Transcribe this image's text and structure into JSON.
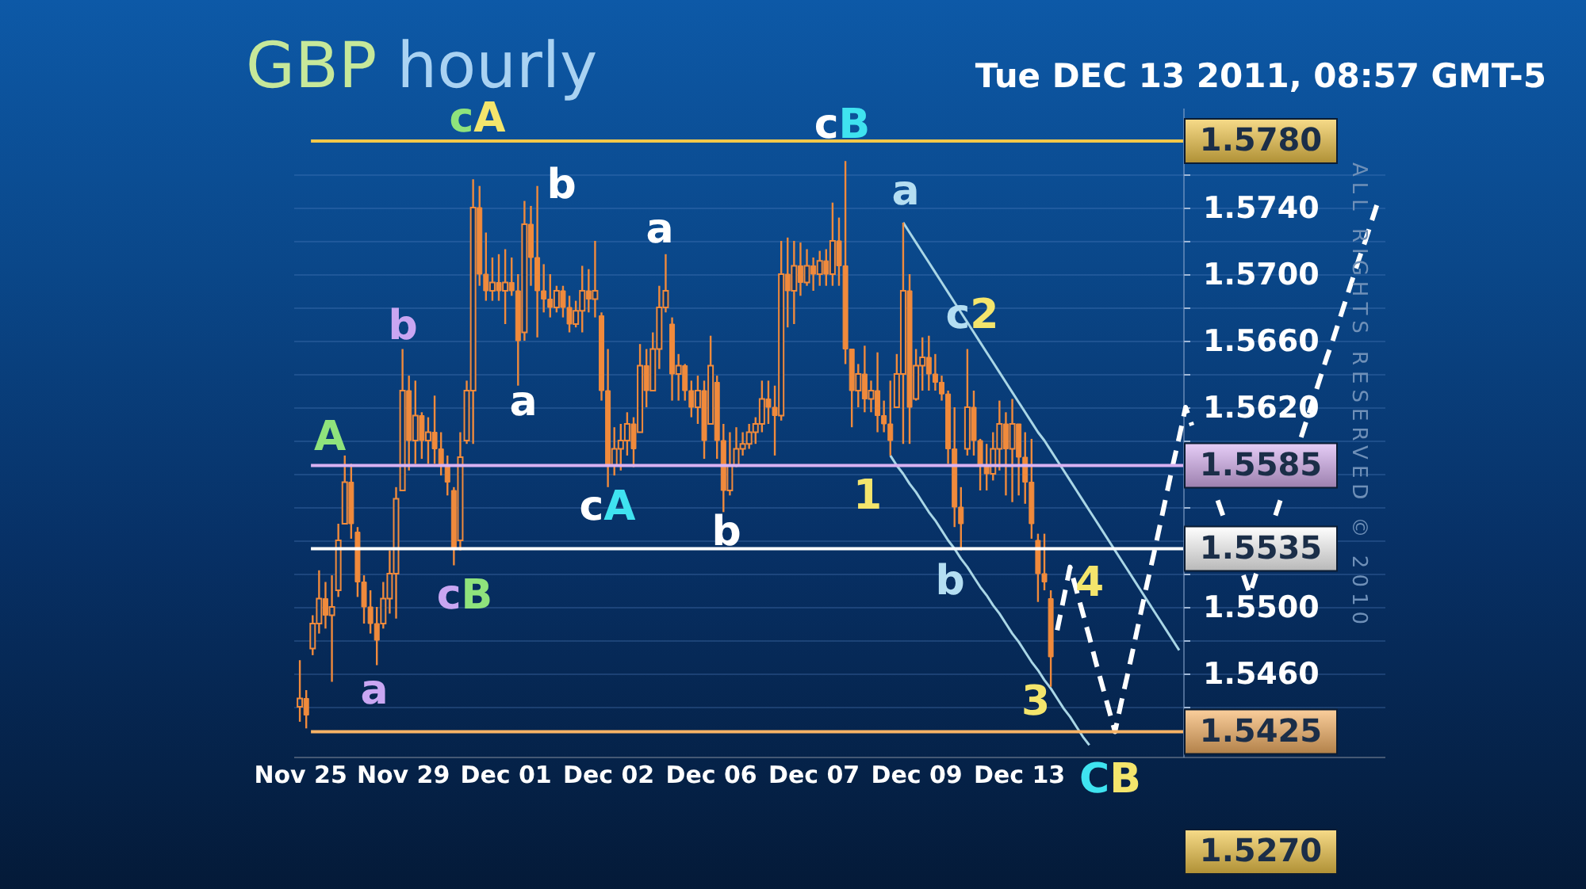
{
  "chart_data": {
    "type": "candlestick",
    "title": "GBP hourly",
    "subtitle": "Tue DEC 13 2011, 08:57 GMT-5",
    "color": "#f08a3c",
    "categories": [
      "Nov 25",
      null,
      null,
      null,
      null,
      null,
      null,
      null,
      null,
      null,
      null,
      null,
      null,
      null,
      null,
      null,
      "Nov 29",
      null,
      null,
      null,
      null,
      null,
      null,
      null,
      null,
      null,
      null,
      null,
      null,
      null,
      null,
      null,
      "Dec 01",
      null,
      null,
      null,
      null,
      null,
      null,
      null,
      null,
      null,
      null,
      null,
      null,
      null,
      null,
      null,
      "Dec 02",
      null,
      null,
      null,
      null,
      null,
      null,
      null,
      null,
      null,
      null,
      null,
      null,
      null,
      null,
      null,
      "Dec 06",
      null,
      null,
      null,
      null,
      null,
      null,
      null,
      null,
      null,
      null,
      null,
      null,
      null,
      null,
      null,
      "Dec 07",
      null,
      null,
      null,
      null,
      null,
      null,
      null,
      null,
      null,
      null,
      null,
      null,
      null,
      null,
      null,
      "Dec 09",
      null,
      null,
      null,
      null,
      null,
      null,
      null,
      null,
      null,
      null,
      null,
      null,
      null,
      null,
      null,
      "Dec 13",
      null,
      null,
      null,
      null,
      null,
      null,
      null,
      null,
      null,
      null,
      null,
      null,
      null,
      null,
      null,
      null,
      null,
      null,
      null,
      null,
      null,
      null,
      null,
      null,
      null,
      null,
      null,
      null,
      null,
      null,
      null,
      null,
      null,
      null,
      null,
      null,
      null,
      null,
      null,
      null,
      null,
      null,
      null,
      null,
      null,
      null,
      null,
      null,
      null,
      null,
      null,
      null,
      null,
      null,
      null,
      null
    ],
    "ohlc": [
      [
        1.544,
        1.5468,
        1.5431,
        1.5445
      ],
      [
        1.5445,
        1.545,
        1.5427,
        1.5435
      ],
      [
        1.5475,
        1.5495,
        1.5471,
        1.549
      ],
      [
        1.549,
        1.5522,
        1.5484,
        1.5505
      ],
      [
        1.5505,
        1.5515,
        1.5487,
        1.5495
      ],
      [
        1.5495,
        1.5519,
        1.5455,
        1.55
      ],
      [
        1.551,
        1.555,
        1.5506,
        1.554
      ],
      [
        1.555,
        1.5591,
        1.555,
        1.5575
      ],
      [
        1.5575,
        1.5586,
        1.5541,
        1.555
      ],
      [
        1.5545,
        1.5548,
        1.5506,
        1.5515
      ],
      [
        1.5515,
        1.5519,
        1.549,
        1.55
      ],
      [
        1.55,
        1.551,
        1.5484,
        1.549
      ],
      [
        1.549,
        1.55,
        1.5465,
        1.548
      ],
      [
        1.549,
        1.5515,
        1.5487,
        1.5505
      ],
      [
        1.5505,
        1.5534,
        1.5496,
        1.552
      ],
      [
        1.552,
        1.5572,
        1.5493,
        1.5565
      ],
      [
        1.557,
        1.5655,
        1.557,
        1.563
      ],
      [
        1.563,
        1.5639,
        1.5582,
        1.56
      ],
      [
        1.56,
        1.5636,
        1.5586,
        1.5615
      ],
      [
        1.5615,
        1.5617,
        1.5589,
        1.56
      ],
      [
        1.56,
        1.5614,
        1.5586,
        1.5605
      ],
      [
        1.5605,
        1.5627,
        1.5586,
        1.5595
      ],
      [
        1.5595,
        1.5605,
        1.5579,
        1.5585
      ],
      [
        1.5585,
        1.5591,
        1.5567,
        1.5575
      ],
      [
        1.557,
        1.5572,
        1.5525,
        1.5535
      ],
      [
        1.554,
        1.5605,
        1.5534,
        1.559
      ],
      [
        1.56,
        1.5636,
        1.5598,
        1.563
      ],
      [
        1.563,
        1.5757,
        1.5598,
        1.574
      ],
      [
        1.574,
        1.5753,
        1.5693,
        1.57
      ],
      [
        1.57,
        1.5725,
        1.5684,
        1.569
      ],
      [
        1.569,
        1.571,
        1.5684,
        1.5695
      ],
      [
        1.5695,
        1.5712,
        1.5684,
        1.569
      ],
      [
        1.569,
        1.5715,
        1.567,
        1.5695
      ],
      [
        1.5695,
        1.571,
        1.5687,
        1.569
      ],
      [
        1.569,
        1.57,
        1.5633,
        1.566
      ],
      [
        1.5665,
        1.5744,
        1.566,
        1.573
      ],
      [
        1.573,
        1.5741,
        1.5693,
        1.571
      ],
      [
        1.571,
        1.5753,
        1.5662,
        1.569
      ],
      [
        1.569,
        1.5706,
        1.5677,
        1.5685
      ],
      [
        1.5685,
        1.57,
        1.5674,
        1.568
      ],
      [
        1.568,
        1.5693,
        1.5677,
        1.569
      ],
      [
        1.569,
        1.5693,
        1.5674,
        1.568
      ],
      [
        1.568,
        1.5687,
        1.5665,
        1.567
      ],
      [
        1.567,
        1.5684,
        1.5668,
        1.5678
      ],
      [
        1.5678,
        1.5705,
        1.5665,
        1.569
      ],
      [
        1.569,
        1.5703,
        1.5677,
        1.5685
      ],
      [
        1.5685,
        1.572,
        1.5674,
        1.569
      ],
      [
        1.5675,
        1.5677,
        1.5624,
        1.563
      ],
      [
        1.563,
        1.5655,
        1.5572,
        1.5585
      ],
      [
        1.5585,
        1.5608,
        1.5579,
        1.5595
      ],
      [
        1.5595,
        1.561,
        1.5582,
        1.56
      ],
      [
        1.56,
        1.5617,
        1.5591,
        1.561
      ],
      [
        1.561,
        1.5614,
        1.5584,
        1.5595
      ],
      [
        1.5605,
        1.5658,
        1.5605,
        1.5645
      ],
      [
        1.5645,
        1.5655,
        1.562,
        1.563
      ],
      [
        1.563,
        1.5665,
        1.563,
        1.5655
      ],
      [
        1.5655,
        1.5693,
        1.5643,
        1.568
      ],
      [
        1.568,
        1.5712,
        1.5677,
        1.569
      ],
      [
        1.567,
        1.5674,
        1.5624,
        1.564
      ],
      [
        1.564,
        1.5652,
        1.5624,
        1.5645
      ],
      [
        1.5645,
        1.5646,
        1.5624,
        1.563
      ],
      [
        1.563,
        1.5636,
        1.5614,
        1.562
      ],
      [
        1.562,
        1.5639,
        1.561,
        1.563
      ],
      [
        1.563,
        1.5636,
        1.5589,
        1.56
      ],
      [
        1.561,
        1.5663,
        1.561,
        1.5645
      ],
      [
        1.5635,
        1.5639,
        1.5589,
        1.56
      ],
      [
        1.56,
        1.561,
        1.5557,
        1.557
      ],
      [
        1.557,
        1.5605,
        1.5567,
        1.5585
      ],
      [
        1.5585,
        1.5608,
        1.5584,
        1.5595
      ],
      [
        1.5595,
        1.5605,
        1.5591,
        1.5598
      ],
      [
        1.5598,
        1.561,
        1.5595,
        1.5605
      ],
      [
        1.5605,
        1.5614,
        1.5598,
        1.561
      ],
      [
        1.561,
        1.5636,
        1.5605,
        1.5625
      ],
      [
        1.5625,
        1.5636,
        1.561,
        1.562
      ],
      [
        1.562,
        1.5633,
        1.5591,
        1.5615
      ],
      [
        1.5615,
        1.572,
        1.5612,
        1.57
      ],
      [
        1.57,
        1.5722,
        1.5668,
        1.569
      ],
      [
        1.569,
        1.572,
        1.567,
        1.5705
      ],
      [
        1.5705,
        1.5719,
        1.5687,
        1.5695
      ],
      [
        1.5695,
        1.5715,
        1.5693,
        1.5705
      ],
      [
        1.5705,
        1.571,
        1.569,
        1.57
      ],
      [
        1.57,
        1.5714,
        1.5693,
        1.5708
      ],
      [
        1.5708,
        1.5715,
        1.5693,
        1.57
      ],
      [
        1.57,
        1.5743,
        1.5693,
        1.572
      ],
      [
        1.572,
        1.5734,
        1.5693,
        1.5705
      ],
      [
        1.5705,
        1.5768,
        1.5646,
        1.5655
      ],
      [
        1.5655,
        1.5655,
        1.5608,
        1.563
      ],
      [
        1.563,
        1.5646,
        1.562,
        1.564
      ],
      [
        1.564,
        1.5657,
        1.5617,
        1.5625
      ],
      [
        1.5625,
        1.5636,
        1.5617,
        1.563
      ],
      [
        1.563,
        1.5653,
        1.5605,
        1.5615
      ],
      [
        1.5615,
        1.5624,
        1.5605,
        1.561
      ],
      [
        1.561,
        1.5636,
        1.5591,
        1.56
      ],
      [
        1.562,
        1.5652,
        1.562,
        1.564
      ],
      [
        1.564,
        1.5731,
        1.5598,
        1.569
      ],
      [
        1.569,
        1.57,
        1.5598,
        1.562
      ],
      [
        1.5625,
        1.5655,
        1.5624,
        1.5645
      ],
      [
        1.5645,
        1.5662,
        1.563,
        1.565
      ],
      [
        1.565,
        1.5663,
        1.563,
        1.564
      ],
      [
        1.564,
        1.5652,
        1.563,
        1.5635
      ],
      [
        1.5635,
        1.5639,
        1.5624,
        1.5628
      ],
      [
        1.5628,
        1.563,
        1.5586,
        1.5595
      ],
      [
        1.5595,
        1.562,
        1.5548,
        1.556
      ],
      [
        1.556,
        1.5572,
        1.5534,
        1.555
      ],
      [
        1.5595,
        1.5655,
        1.5591,
        1.562
      ],
      [
        1.562,
        1.563,
        1.5591,
        1.56
      ],
      [
        1.56,
        1.5601,
        1.557,
        1.5585
      ],
      [
        1.5585,
        1.5598,
        1.557,
        1.558
      ],
      [
        1.558,
        1.5605,
        1.5576,
        1.5595
      ],
      [
        1.5595,
        1.5624,
        1.5582,
        1.561
      ],
      [
        1.561,
        1.5617,
        1.5567,
        1.5595
      ],
      [
        1.5595,
        1.5625,
        1.5563,
        1.561
      ],
      [
        1.561,
        1.561,
        1.5567,
        1.559
      ],
      [
        1.559,
        1.5605,
        1.5562,
        1.5575
      ],
      [
        1.5575,
        1.5601,
        1.5541,
        1.555
      ],
      [
        1.554,
        1.5544,
        1.5503,
        1.552
      ],
      [
        1.552,
        1.5544,
        1.551,
        1.5515
      ],
      [
        1.5505,
        1.551,
        1.5452,
        1.547
      ],
      null,
      null,
      null,
      null,
      null,
      null,
      null,
      null,
      null,
      null,
      null,
      null,
      null,
      null,
      null,
      null,
      null,
      null,
      null,
      null,
      null,
      null,
      null,
      null,
      null,
      null,
      null,
      null,
      null,
      null,
      null,
      null,
      null,
      null,
      null,
      null,
      null,
      null,
      null,
      null,
      null,
      null,
      null,
      null,
      null,
      null,
      null,
      null,
      null,
      null,
      null
    ],
    "series": [
      {
        "type": "line",
        "color": "#a9d6e6",
        "values": [
          null,
          null,
          null,
          null,
          null,
          null,
          null,
          null,
          null,
          null,
          null,
          null,
          null,
          null,
          null,
          null,
          null,
          null,
          null,
          null,
          null,
          null,
          null,
          null,
          null,
          null,
          null,
          null,
          null,
          null,
          null,
          null,
          null,
          null,
          null,
          null,
          null,
          null,
          null,
          null,
          null,
          null,
          null,
          null,
          null,
          null,
          null,
          null,
          null,
          null,
          null,
          null,
          null,
          null,
          null,
          null,
          null,
          null,
          null,
          null,
          null,
          null,
          null,
          null,
          null,
          null,
          null,
          null,
          null,
          null,
          null,
          null,
          null,
          null,
          null,
          null,
          null,
          null,
          null,
          null,
          null,
          null,
          null,
          null,
          null,
          null,
          null,
          null,
          null,
          null,
          null,
          null,
          null,
          null,
          1.5731,
          1.5725,
          1.5719,
          1.5713,
          1.5707,
          1.5701,
          1.5695,
          1.5689,
          1.5683,
          1.5677,
          1.5671,
          1.5665,
          1.5659,
          1.5653,
          1.5647,
          1.5641,
          1.5635,
          1.5629,
          1.5623,
          1.5617,
          1.5611,
          1.5605,
          1.56,
          1.5594,
          1.5588,
          1.5582,
          1.5576,
          1.557,
          1.5564,
          1.5558,
          1.5552,
          1.5546,
          1.554,
          1.5534,
          1.5528,
          1.5522,
          1.5516,
          1.551,
          1.5504,
          1.5498,
          1.5492,
          1.5486,
          1.548,
          1.5474,
          null,
          null,
          null,
          null,
          null,
          null,
          null,
          null,
          null,
          null,
          null,
          null,
          null,
          null,
          null,
          null,
          null,
          null,
          null,
          null,
          null,
          null,
          null,
          null,
          null,
          null,
          null,
          null,
          null,
          null,
          null
        ]
      },
      {
        "type": "line",
        "color": "#a9d6e6",
        "values": [
          null,
          null,
          null,
          null,
          null,
          null,
          null,
          null,
          null,
          null,
          null,
          null,
          null,
          null,
          null,
          null,
          null,
          null,
          null,
          null,
          null,
          null,
          null,
          null,
          null,
          null,
          null,
          null,
          null,
          null,
          null,
          null,
          null,
          null,
          null,
          null,
          null,
          null,
          null,
          null,
          null,
          null,
          null,
          null,
          null,
          null,
          null,
          null,
          null,
          null,
          null,
          null,
          null,
          null,
          null,
          null,
          null,
          null,
          null,
          null,
          null,
          null,
          null,
          null,
          null,
          null,
          null,
          null,
          null,
          null,
          null,
          null,
          null,
          null,
          null,
          null,
          null,
          null,
          null,
          null,
          null,
          null,
          null,
          null,
          null,
          null,
          null,
          null,
          null,
          null,
          null,
          null,
          1.5591,
          1.5585,
          1.558,
          1.5574,
          1.5569,
          1.5563,
          1.5557,
          1.5552,
          1.5546,
          1.554,
          1.5535,
          1.5529,
          1.5524,
          1.5518,
          1.5512,
          1.5507,
          1.5501,
          1.5496,
          1.549,
          1.5484,
          1.5479,
          1.5473,
          1.5467,
          1.5462,
          1.5456,
          1.5451,
          1.5445,
          1.5439,
          1.5434,
          1.5428,
          1.5422,
          1.5417,
          null,
          null,
          null,
          null,
          null,
          null,
          null,
          null,
          null,
          null,
          null,
          null,
          null,
          null,
          null,
          null,
          null,
          null,
          null,
          null,
          null,
          null,
          null,
          null,
          null,
          null,
          null,
          null,
          null,
          null,
          null,
          null,
          null,
          null,
          null,
          null,
          null,
          null,
          null,
          null,
          null,
          null,
          null,
          null,
          null
        ]
      },
      {
        "type": "line",
        "color": "#ffffff",
        "line_style": "dashed",
        "values": [
          null,
          null,
          null,
          null,
          null,
          null,
          null,
          null,
          null,
          null,
          null,
          null,
          null,
          null,
          null,
          null,
          null,
          null,
          null,
          null,
          null,
          null,
          null,
          null,
          null,
          null,
          null,
          null,
          null,
          null,
          null,
          null,
          null,
          null,
          null,
          null,
          null,
          null,
          null,
          null,
          null,
          null,
          null,
          null,
          null,
          null,
          null,
          null,
          null,
          null,
          null,
          null,
          null,
          null,
          null,
          null,
          null,
          null,
          null,
          null,
          null,
          null,
          null,
          null,
          null,
          null,
          null,
          null,
          null,
          null,
          null,
          null,
          null,
          null,
          null,
          null,
          null,
          null,
          null,
          null,
          null,
          null,
          null,
          null,
          null,
          null,
          null,
          null,
          null,
          null,
          null,
          null,
          null,
          null,
          null,
          null,
          null,
          null,
          null,
          null,
          null,
          null,
          null,
          null,
          null,
          null,
          null,
          null,
          null,
          null,
          null,
          null,
          null,
          null,
          null,
          null,
          null,
          null,
          1.5486,
          1.5505,
          1.5524,
          1.551,
          1.5496,
          1.5482,
          1.5467,
          1.5453,
          1.5439,
          1.5425,
          1.5443,
          1.546,
          1.5478,
          1.5496,
          1.5514,
          1.5531,
          1.5549,
          1.5567,
          1.5585,
          1.5602,
          1.562,
          1.5609,
          null,
          null,
          null,
          1.5564,
          1.5553,
          null,
          null,
          1.5519,
          1.5508,
          1.552,
          null,
          null,
          1.5555,
          1.5567,
          null,
          null,
          1.5602,
          1.5614,
          1.5626,
          1.5638,
          1.565,
          1.5661,
          1.5673,
          1.5685,
          1.5697,
          1.5709,
          1.572,
          1.5732,
          1.5744
        ]
      }
    ],
    "ylim": [
      1.541,
      1.58
    ],
    "yticks": [
      {
        "value": 1.544,
        "label": null
      },
      {
        "value": 1.546,
        "label": "1.5460"
      },
      {
        "value": 1.548,
        "label": null
      },
      {
        "value": 1.55,
        "label": "1.5500"
      },
      {
        "value": 1.552,
        "label": null
      },
      {
        "value": 1.554,
        "label": null
      },
      {
        "value": 1.556,
        "label": null
      },
      {
        "value": 1.558,
        "label": null
      },
      {
        "value": 1.56,
        "label": null
      },
      {
        "value": 1.562,
        "label": "1.5620"
      },
      {
        "value": 1.564,
        "label": null
      },
      {
        "value": 1.566,
        "label": "1.5660"
      },
      {
        "value": 1.568,
        "label": null
      },
      {
        "value": 1.57,
        "label": "1.5700"
      },
      {
        "value": 1.572,
        "label": null
      },
      {
        "value": 1.574,
        "label": "1.5740"
      },
      {
        "value": 1.576,
        "label": null
      }
    ],
    "grid": "y",
    "ref_lines": [
      {
        "axis": "y",
        "value": 1.578,
        "label": "1.5780",
        "color": "#f3c84a"
      },
      {
        "axis": "y",
        "value": 1.5585,
        "label": "1.5585",
        "color": "#d9b2f2"
      },
      {
        "axis": "y",
        "value": 1.5535,
        "label": "1.5535",
        "color": "#ffffff"
      },
      {
        "axis": "y",
        "value": 1.5425,
        "label": "1.5425",
        "color": "#f7b366"
      }
    ],
    "annotations": [
      "cA",
      "b",
      "a",
      "cB",
      "a",
      "c2",
      "A",
      "b",
      "a",
      "cA",
      "b",
      "1",
      "b",
      "4",
      "3",
      "CB",
      "cB",
      "a",
      "ALL RIGHTS RESERVED © 2010",
      "1.5270"
    ]
  }
}
